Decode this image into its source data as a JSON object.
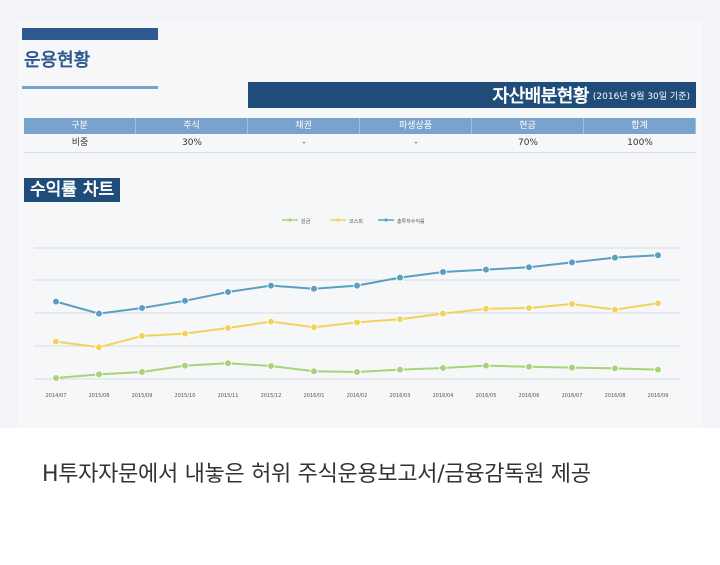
{
  "doc": {
    "title": "운용현황",
    "asset_title": "자산배분현황",
    "asset_subtitle": "(2016년 9월 30일 기준)"
  },
  "table": {
    "headers": [
      "구분",
      "주식",
      "채권",
      "파생상품",
      "현금",
      "합계"
    ],
    "row": [
      "비중",
      "30%",
      "-",
      "-",
      "70%",
      "100%"
    ]
  },
  "chart_title": "수익률 차트",
  "chart_data": {
    "type": "line",
    "x": [
      "2014/07",
      "2015/08",
      "2015/09",
      "2015/10",
      "2015/11",
      "2015/12",
      "2016/01",
      "2016/02",
      "2016/03",
      "2016/04",
      "2016/05",
      "2016/06",
      "2016/07",
      "2016/08",
      "2016/09"
    ],
    "series": [
      {
        "name": "원금",
        "color": "#a9d37a",
        "values": [
          -0.5,
          0.4,
          1.0,
          2.6,
          3.2,
          2.5,
          1.2,
          1.0,
          1.6,
          2.0,
          2.6,
          2.3,
          2.1,
          1.9,
          1.6
        ]
      },
      {
        "name": "코스피",
        "color": "#f2d35a",
        "values": [
          8.6,
          7.2,
          10.0,
          10.6,
          12.0,
          13.6,
          12.2,
          13.4,
          14.2,
          15.6,
          16.8,
          17.0,
          18.0,
          16.6,
          18.2
        ]
      },
      {
        "name": "총투자수익률",
        "color": "#5a9fc2",
        "values": [
          18.6,
          15.6,
          17.0,
          18.8,
          21.0,
          22.6,
          21.8,
          22.6,
          24.6,
          26.0,
          26.6,
          27.2,
          28.4,
          29.6,
          30.2
        ]
      }
    ],
    "ylim": [
      -2,
      34
    ],
    "grid": true,
    "legend": "top-center"
  },
  "caption": "H투자자문에서 내놓은 허위 주식운용보고서/금융감독원 제공"
}
